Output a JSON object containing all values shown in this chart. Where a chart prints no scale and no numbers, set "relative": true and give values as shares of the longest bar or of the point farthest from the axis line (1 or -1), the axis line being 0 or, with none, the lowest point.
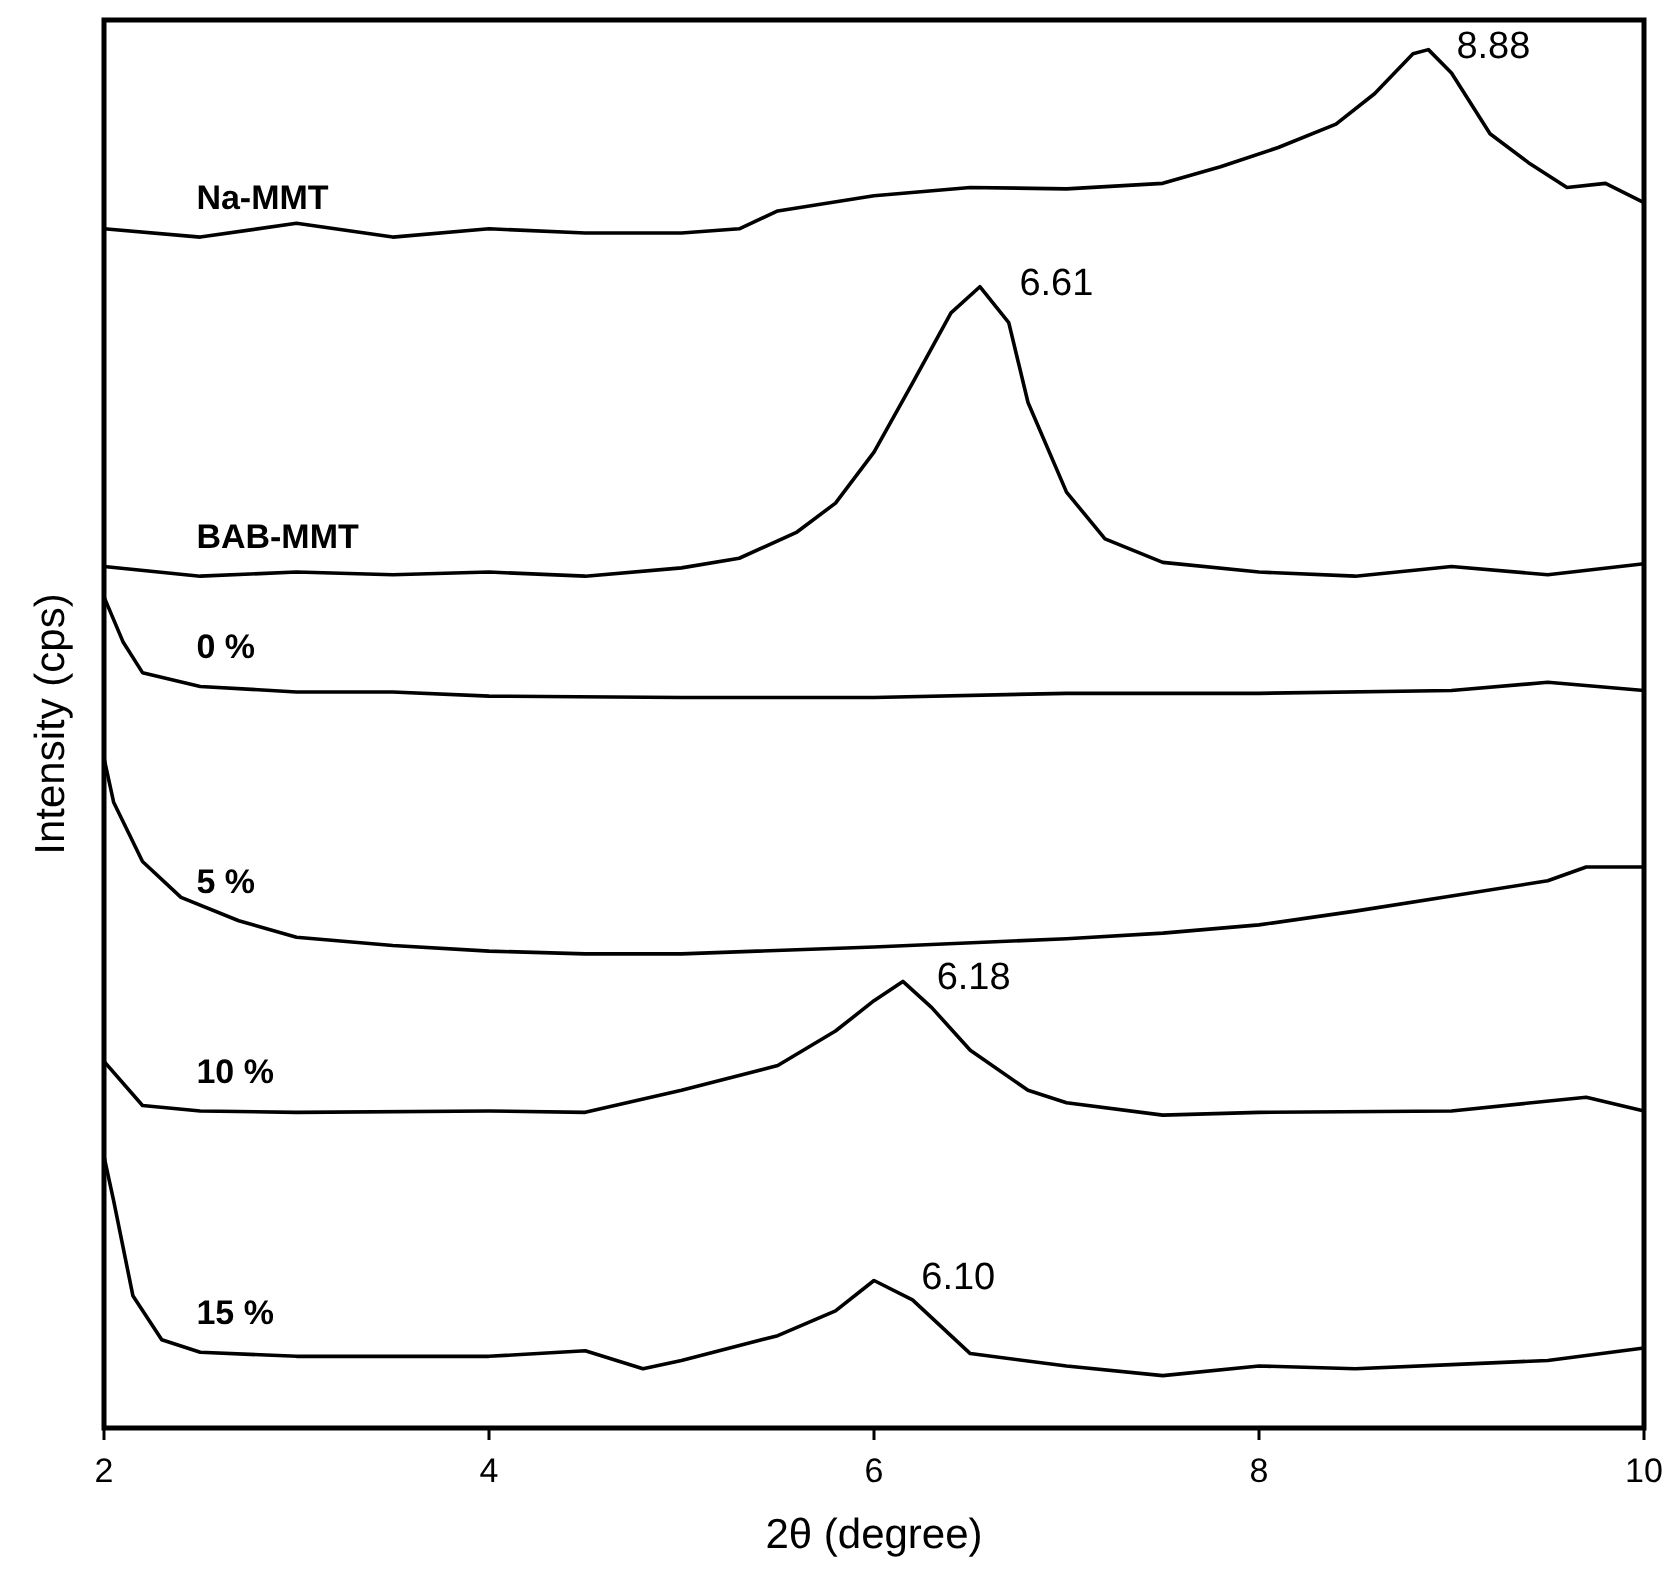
{
  "chart_data": {
    "type": "line",
    "relative": true,
    "xlabel": "2θ (degree)",
    "ylabel": "Intensity (cps)",
    "xlim": [
      2,
      10
    ],
    "xticks": [
      2,
      4,
      6,
      8,
      10
    ],
    "tick_labels": "x",
    "grid": false,
    "marker": "none",
    "line_style": "solid",
    "series": [
      {
        "name": "Na-MMT",
        "color": "#000000",
        "x": [
          2,
          2.5,
          3,
          3.5,
          4,
          4.5,
          5,
          5.3,
          5.5,
          6,
          6.5,
          7,
          7.5,
          7.8,
          8.1,
          8.4,
          8.6,
          8.8,
          8.88,
          9,
          9.2,
          9.4,
          9.6,
          9.8,
          10
        ],
        "values": [
          0.87,
          0.864,
          0.874,
          0.864,
          0.87,
          0.867,
          0.867,
          0.87,
          0.883,
          0.894,
          0.9,
          0.899,
          0.903,
          0.915,
          0.929,
          0.946,
          0.968,
          0.997,
          1.0,
          0.983,
          0.939,
          0.918,
          0.9,
          0.903,
          0.889
        ]
      },
      {
        "name": "BAB-MMT",
        "color": "#000000",
        "x": [
          2,
          2.5,
          3,
          3.5,
          4,
          4.5,
          5,
          5.3,
          5.6,
          5.8,
          6,
          6.2,
          6.4,
          6.55,
          6.7,
          6.8,
          7,
          7.2,
          7.5,
          8,
          8.5,
          9,
          9.5,
          10
        ],
        "values": [
          0.625,
          0.618,
          0.621,
          0.619,
          0.621,
          0.618,
          0.624,
          0.631,
          0.65,
          0.671,
          0.708,
          0.758,
          0.809,
          0.828,
          0.802,
          0.744,
          0.679,
          0.645,
          0.628,
          0.621,
          0.618,
          0.625,
          0.619,
          0.627
        ]
      },
      {
        "name": "0 %",
        "color": "#000000",
        "x": [
          2,
          2.1,
          2.2,
          2.5,
          3,
          3.5,
          4,
          5,
          6,
          7,
          8,
          9,
          9.5,
          10
        ],
        "values": [
          0.603,
          0.57,
          0.548,
          0.538,
          0.534,
          0.534,
          0.531,
          0.53,
          0.53,
          0.533,
          0.533,
          0.535,
          0.541,
          0.535
        ]
      },
      {
        "name": "5 %",
        "color": "#000000",
        "x": [
          2,
          2.05,
          2.2,
          2.4,
          2.7,
          3,
          3.5,
          4,
          4.5,
          5,
          6,
          7,
          7.5,
          8,
          8.5,
          9,
          9.5,
          9.7,
          10
        ],
        "values": [
          0.486,
          0.454,
          0.411,
          0.385,
          0.368,
          0.356,
          0.35,
          0.346,
          0.344,
          0.344,
          0.349,
          0.355,
          0.359,
          0.365,
          0.375,
          0.386,
          0.397,
          0.407,
          0.407
        ]
      },
      {
        "name": "10 %",
        "color": "#000000",
        "x": [
          2,
          2.2,
          2.5,
          3,
          4,
          4.5,
          5,
          5.5,
          5.8,
          6,
          6.15,
          6.3,
          6.5,
          6.8,
          7,
          7.5,
          8,
          9,
          9.7,
          10
        ],
        "values": [
          0.266,
          0.234,
          0.23,
          0.229,
          0.23,
          0.229,
          0.245,
          0.263,
          0.288,
          0.31,
          0.324,
          0.305,
          0.274,
          0.245,
          0.236,
          0.227,
          0.229,
          0.23,
          0.24,
          0.23
        ]
      },
      {
        "name": "15 %",
        "color": "#000000",
        "x": [
          2,
          2.05,
          2.15,
          2.3,
          2.5,
          3,
          4,
          4.5,
          4.8,
          5,
          5.5,
          5.8,
          6,
          6.2,
          6.5,
          7,
          7.5,
          8,
          8.5,
          9,
          9.5,
          10
        ],
        "values": [
          0.197,
          0.165,
          0.096,
          0.064,
          0.055,
          0.052,
          0.052,
          0.056,
          0.043,
          0.049,
          0.067,
          0.085,
          0.107,
          0.093,
          0.054,
          0.045,
          0.038,
          0.045,
          0.043,
          0.046,
          0.049,
          0.058
        ]
      }
    ],
    "annotations": [
      {
        "text": "8.88",
        "x": 8.88,
        "y": 1.0
      },
      {
        "text": "6.61",
        "x": 6.61,
        "y": 0.828
      },
      {
        "text": "6.18",
        "x": 6.18,
        "y": 0.324
      },
      {
        "text": "6.10",
        "x": 6.1,
        "y": 0.107
      }
    ]
  }
}
